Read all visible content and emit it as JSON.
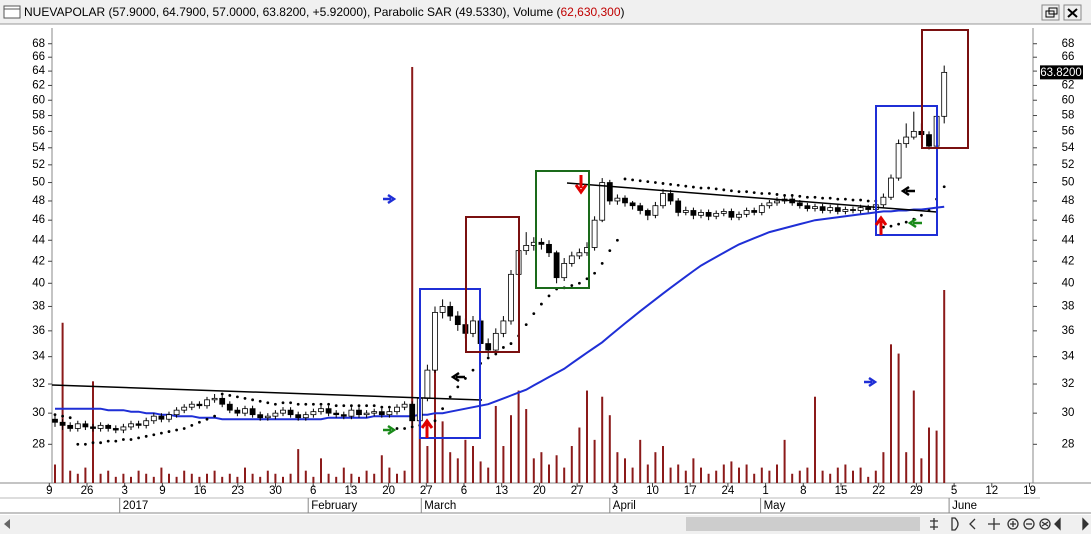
{
  "chart_data": {
    "type": "candlestick",
    "title": "NUEVAPOLAR (57.9000, 64.7900, 57.0000, 63.8200, +5.92000), Parabolic SAR (49.5330), Volume (",
    "title_volume": "62,630,300",
    "title_end": ")",
    "log_scale": true,
    "ylim": [
      25.7,
      70.1
    ],
    "yticks": [
      28,
      30,
      32,
      34,
      36,
      38,
      40,
      42,
      44,
      46,
      48,
      50,
      52,
      54,
      56,
      58,
      60,
      62,
      64,
      66,
      68
    ],
    "y2lim": [
      0,
      147
    ],
    "last_price": {
      "value": 63.82,
      "label": "63.8200"
    },
    "x_tick_labels": [
      "9",
      "26",
      "3",
      "9",
      "16",
      "23",
      "30",
      "6",
      "13",
      "20",
      "27",
      "6",
      "13",
      "20",
      "27",
      "3",
      "10",
      "17",
      "24",
      "1",
      "8",
      "15",
      "22",
      "29",
      "5",
      "12",
      "19"
    ],
    "months": [
      "2017",
      "February",
      "March",
      "April",
      "May",
      "June"
    ],
    "price": {
      "up_color": "#ffffff",
      "down_color": "#000000",
      "open": [
        29.6,
        29.4,
        29.2,
        29.0,
        29.3,
        29.1,
        29.0,
        29.2,
        29.0,
        28.9,
        29.1,
        29.3,
        29.2,
        29.5,
        29.8,
        29.6,
        29.9,
        30.2,
        30.4,
        30.6,
        30.5,
        30.9,
        31.0,
        30.6,
        30.2,
        30.0,
        30.3,
        29.9,
        29.7,
        29.8,
        30.0,
        30.2,
        29.9,
        29.7,
        29.9,
        30.1,
        30.3,
        30.0,
        29.9,
        29.8,
        30.2,
        29.9,
        30.0,
        30.1,
        29.9,
        30.1,
        30.4,
        30.6,
        29.5,
        31.0,
        33.0,
        37.5,
        38.0,
        37.2,
        36.5,
        35.8,
        36.8,
        35.0,
        34.5,
        35.8,
        36.8,
        40.8,
        43.0,
        43.5,
        43.8,
        43.6,
        42.8,
        40.5,
        41.8,
        42.5,
        42.8,
        43.3,
        46.0,
        50.0,
        48.0,
        48.3,
        47.8,
        47.5,
        47.0,
        46.5,
        47.5,
        48.8,
        48.0,
        46.8,
        47.0,
        46.5,
        46.8,
        46.4,
        46.7,
        46.9,
        46.3,
        46.6,
        47.0,
        46.8,
        47.5,
        47.8,
        48.0,
        48.2,
        47.8,
        47.5,
        47.2,
        47.4,
        47.0,
        47.3,
        46.9,
        47.1,
        47.0,
        47.3,
        47.1,
        47.6,
        48.4,
        50.5,
        54.5,
        55.3,
        56.0,
        55.6,
        54.2,
        57.9
      ],
      "high": [
        29.9,
        29.6,
        29.4,
        29.5,
        29.5,
        29.3,
        29.4,
        29.3,
        29.2,
        29.3,
        29.5,
        29.5,
        29.7,
        30.0,
        30.0,
        30.1,
        30.4,
        30.6,
        30.8,
        30.8,
        31.1,
        31.3,
        31.2,
        30.8,
        30.4,
        30.5,
        30.5,
        30.1,
        30.0,
        30.2,
        30.4,
        30.4,
        30.1,
        30.1,
        30.3,
        30.5,
        30.5,
        30.2,
        30.1,
        30.4,
        30.4,
        30.2,
        30.3,
        30.3,
        30.3,
        30.6,
        30.8,
        30.8,
        31.3,
        33.4,
        38.0,
        38.6,
        38.4,
        37.6,
        37.0,
        37.2,
        37.0,
        35.4,
        36.2,
        37.2,
        41.2,
        43.5,
        44.8,
        44.3,
        44.2,
        44.0,
        43.0,
        42.3,
        42.9,
        43.2,
        43.8,
        46.4,
        50.5,
        50.3,
        48.7,
        48.6,
        48.0,
        47.8,
        47.2,
        47.9,
        49.3,
        49.2,
        48.3,
        47.4,
        47.3,
        47.1,
        47.1,
        47.0,
        47.2,
        47.2,
        46.9,
        47.3,
        47.3,
        47.8,
        48.1,
        48.4,
        48.6,
        48.5,
        48.1,
        47.8,
        47.7,
        47.7,
        47.6,
        47.6,
        47.4,
        47.4,
        47.6,
        47.6,
        47.9,
        48.8,
        50.9,
        55.0,
        57.0,
        58.5,
        57.0,
        56.0,
        58.4,
        64.79
      ],
      "low": [
        29.1,
        28.9,
        28.8,
        28.8,
        28.9,
        28.8,
        28.8,
        28.8,
        28.7,
        28.7,
        28.9,
        29.0,
        29.0,
        29.3,
        29.4,
        29.4,
        29.7,
        30.0,
        30.2,
        30.3,
        30.3,
        30.7,
        30.4,
        30.0,
        29.8,
        29.8,
        29.7,
        29.5,
        29.5,
        29.6,
        29.8,
        29.7,
        29.5,
        29.5,
        29.7,
        29.9,
        29.8,
        29.7,
        29.6,
        29.6,
        29.7,
        29.7,
        29.8,
        29.7,
        29.7,
        29.9,
        30.2,
        29.2,
        29.3,
        30.8,
        32.8,
        37.0,
        36.8,
        36.0,
        35.4,
        35.5,
        34.6,
        34.0,
        34.3,
        35.5,
        36.5,
        40.5,
        42.6,
        43.0,
        43.1,
        42.4,
        40.0,
        40.2,
        41.5,
        42.2,
        42.5,
        43.0,
        45.8,
        47.6,
        47.6,
        47.4,
        47.1,
        46.6,
        46.0,
        46.2,
        47.2,
        47.6,
        46.4,
        46.5,
        46.1,
        46.2,
        46.0,
        46.1,
        46.4,
        46.0,
        46.0,
        46.3,
        46.5,
        46.5,
        47.2,
        47.5,
        47.7,
        47.5,
        47.2,
        46.9,
        46.9,
        46.7,
        46.7,
        46.6,
        46.6,
        46.7,
        46.7,
        46.8,
        46.8,
        47.3,
        48.1,
        50.2,
        54.0,
        55.0,
        55.2,
        53.8,
        53.9,
        57.0
      ],
      "close": [
        29.4,
        29.2,
        29.0,
        29.3,
        29.1,
        29.0,
        29.2,
        29.0,
        28.9,
        29.1,
        29.3,
        29.2,
        29.5,
        29.8,
        29.6,
        29.9,
        30.2,
        30.4,
        30.6,
        30.5,
        30.9,
        31.0,
        30.6,
        30.2,
        30.0,
        30.3,
        29.9,
        29.7,
        29.8,
        30.0,
        30.2,
        29.9,
        29.7,
        29.9,
        30.1,
        30.3,
        30.0,
        29.9,
        29.8,
        30.2,
        29.9,
        30.0,
        30.1,
        29.9,
        30.1,
        30.4,
        30.6,
        29.5,
        31.0,
        33.0,
        37.5,
        38.0,
        37.2,
        36.5,
        35.8,
        36.8,
        35.0,
        34.5,
        35.8,
        36.8,
        40.8,
        43.0,
        43.5,
        43.8,
        43.6,
        42.8,
        40.5,
        41.8,
        42.5,
        42.8,
        43.3,
        46.0,
        50.0,
        48.0,
        48.3,
        47.8,
        47.5,
        47.0,
        46.5,
        47.5,
        48.8,
        48.0,
        46.8,
        47.0,
        46.5,
        46.8,
        46.4,
        46.7,
        46.9,
        46.3,
        46.6,
        47.0,
        46.8,
        47.5,
        47.8,
        48.0,
        48.2,
        47.8,
        47.5,
        47.2,
        47.4,
        47.0,
        47.3,
        46.9,
        47.1,
        47.0,
        47.3,
        47.1,
        47.6,
        48.4,
        50.5,
        54.5,
        55.3,
        56.0,
        55.6,
        54.2,
        57.9,
        63.82
      ]
    },
    "volume": {
      "color": "#8b1a1a",
      "axis": "y2",
      "values": [
        6,
        52,
        4,
        3,
        5,
        33,
        3,
        4,
        2,
        3,
        2,
        4,
        3,
        2,
        5,
        3,
        2,
        4,
        3,
        2,
        3,
        4,
        2,
        3,
        2,
        5,
        3,
        2,
        4,
        3,
        2,
        3,
        11,
        4,
        2,
        8,
        3,
        2,
        5,
        3,
        2,
        4,
        3,
        9,
        5,
        3,
        4,
        135,
        25,
        12,
        40,
        20,
        10,
        8,
        14,
        12,
        7,
        5,
        25,
        12,
        22,
        30,
        24,
        8,
        10,
        6,
        9,
        5,
        12,
        18,
        30,
        14,
        28,
        22,
        10,
        8,
        5,
        14,
        6,
        10,
        12,
        5,
        6,
        4,
        8,
        5,
        3,
        4,
        6,
        7,
        5,
        6,
        3,
        5,
        4,
        6,
        14,
        3,
        4,
        5,
        28,
        4,
        3,
        5,
        6,
        4,
        5,
        2,
        4,
        10,
        45,
        42,
        10,
        30,
        8,
        18,
        17,
        62.6303
      ]
    },
    "sar": {
      "color": "#000000",
      "values": [
        29.9,
        29.8,
        29.7,
        28.0,
        28.0,
        28.1,
        28.1,
        28.2,
        28.2,
        28.3,
        28.3,
        28.4,
        28.5,
        28.6,
        28.7,
        28.8,
        28.9,
        29.0,
        29.2,
        29.4,
        29.6,
        29.8,
        31.3,
        31.2,
        31.1,
        31.0,
        30.9,
        30.8,
        30.7,
        30.6,
        30.7,
        30.7,
        30.6,
        30.6,
        30.6,
        30.6,
        30.6,
        30.5,
        30.5,
        30.5,
        30.5,
        30.5,
        30.5,
        30.4,
        30.4,
        29.0,
        29.0,
        29.1,
        29.2,
        29.3,
        29.5,
        30.3,
        31.1,
        31.8,
        32.4,
        33.0,
        33.5,
        33.9,
        34.2,
        34.7,
        35.0,
        35.6,
        36.5,
        37.4,
        38.2,
        38.9,
        39.5,
        39.6,
        39.8,
        40.0,
        40.4,
        40.9,
        41.8,
        43.0,
        44.0,
        50.4,
        50.3,
        50.2,
        50.1,
        50.0,
        49.9,
        49.8,
        49.7,
        49.6,
        49.5,
        49.4,
        49.4,
        49.3,
        49.2,
        49.1,
        49.0,
        49.0,
        48.9,
        48.8,
        48.8,
        48.7,
        48.6,
        48.6,
        48.5,
        48.4,
        48.4,
        48.3,
        48.3,
        48.2,
        48.2,
        48.1,
        48.1,
        48.0,
        48.0,
        45.3,
        45.4,
        45.6,
        45.8,
        46.1,
        46.5,
        47.0,
        48.2,
        49.533
      ]
    },
    "ma": {
      "color": "#1f2fd6",
      "values": [
        30.3,
        30.3,
        30.3,
        30.3,
        30.3,
        30.3,
        30.3,
        30.2,
        30.2,
        30.2,
        30.1,
        30.1,
        30.0,
        30.0,
        29.9,
        29.9,
        29.8,
        29.8,
        29.8,
        29.7,
        29.7,
        29.7,
        29.6,
        29.6,
        29.6,
        29.6,
        29.6,
        29.6,
        29.6,
        29.6,
        29.6,
        29.6,
        29.6,
        29.6,
        29.6,
        29.6,
        29.7,
        29.7,
        29.7,
        29.7,
        29.7,
        29.7,
        29.8,
        29.8,
        29.8,
        29.8,
        29.8,
        29.8,
        29.9,
        29.9,
        30.0,
        30.0,
        30.1,
        30.2,
        30.3,
        30.4,
        30.5,
        30.6,
        30.8,
        31.0,
        31.2,
        31.4,
        31.6,
        31.9,
        32.2,
        32.5,
        32.8,
        33.1,
        33.5,
        33.9,
        34.3,
        34.7,
        35.1,
        35.6,
        36.1,
        36.6,
        37.1,
        37.6,
        38.1,
        38.6,
        39.1,
        39.6,
        40.1,
        40.6,
        41.1,
        41.6,
        42.0,
        42.4,
        42.8,
        43.2,
        43.6,
        43.9,
        44.2,
        44.5,
        44.8,
        45.0,
        45.2,
        45.4,
        45.6,
        45.8,
        46.0,
        46.1,
        46.2,
        46.3,
        46.4,
        46.5,
        46.6,
        46.7,
        46.8,
        46.9,
        46.9,
        47.0,
        47.0,
        47.1,
        47.1,
        47.2,
        47.3,
        47.4
      ]
    }
  }
}
